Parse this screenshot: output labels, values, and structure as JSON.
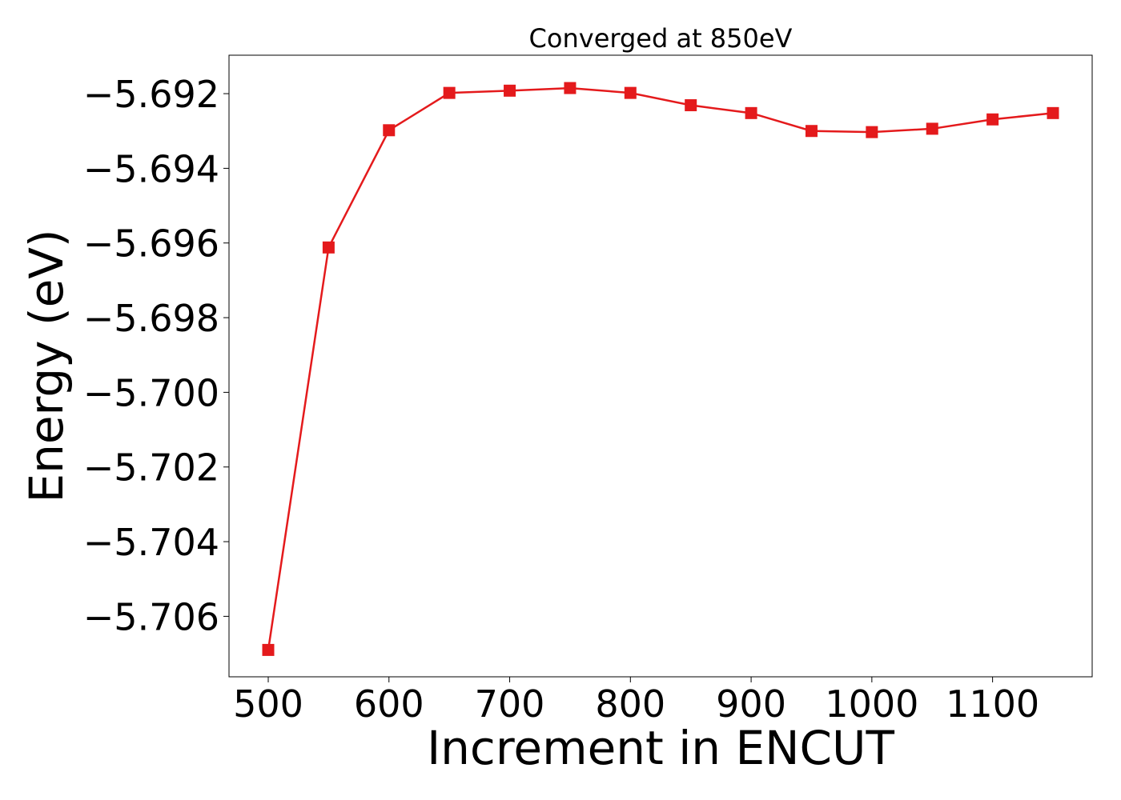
{
  "chart_data": {
    "type": "line",
    "title": "Converged at 850eV",
    "xlabel": "Increment in ENCUT",
    "ylabel": "Energy (eV)",
    "x": [
      500,
      550,
      600,
      650,
      700,
      750,
      800,
      850,
      900,
      950,
      1000,
      1050,
      1100,
      1150
    ],
    "series": [
      {
        "values": [
          -5.7069,
          -5.69612,
          -5.69298,
          -5.69198,
          -5.69192,
          -5.69185,
          -5.69198,
          -5.69231,
          -5.69252,
          -5.693,
          -5.69303,
          -5.69294,
          -5.69269,
          -5.69252
        ],
        "color": "#e41a1c",
        "marker": "square"
      }
    ],
    "xlim": [
      467.5,
      1182.5
    ],
    "ylim": [
      -5.70762,
      -5.69097
    ],
    "xticks": [
      500,
      600,
      700,
      800,
      900,
      1000,
      1100
    ],
    "xtick_labels": [
      "500",
      "600",
      "700",
      "800",
      "900",
      "1000",
      "1100"
    ],
    "yticks": [
      -5.692,
      -5.694,
      -5.696,
      -5.698,
      -5.7,
      -5.702,
      -5.704,
      -5.706
    ],
    "ytick_labels": [
      "−5.692",
      "−5.694",
      "−5.696",
      "−5.698",
      "−5.700",
      "−5.702",
      "−5.704",
      "−5.706"
    ],
    "grid": false,
    "legend": "none"
  }
}
